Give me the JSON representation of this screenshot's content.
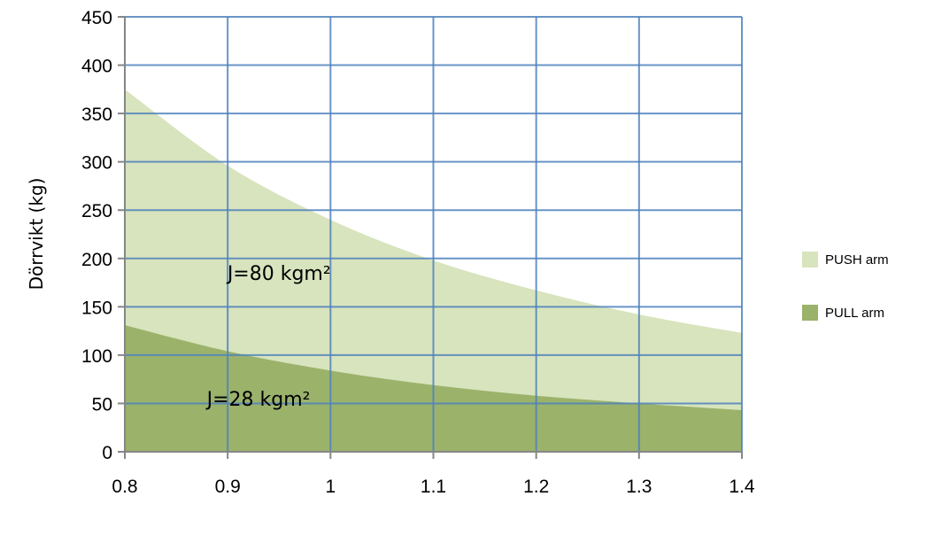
{
  "chart_data": {
    "type": "area",
    "ylabel": "Dörrvikt (kg)",
    "xlabel": "",
    "xlim": [
      0.8,
      1.4
    ],
    "ylim": [
      0,
      450
    ],
    "x_ticks": [
      "0.8",
      "0.9",
      "1",
      "1.1",
      "1.2",
      "1.3",
      "1.4"
    ],
    "y_ticks": [
      "0",
      "50",
      "100",
      "150",
      "200",
      "250",
      "300",
      "350",
      "400",
      "450"
    ],
    "grid": true,
    "legend_position": "right",
    "x": [
      0.8,
      0.9,
      1.0,
      1.1,
      1.2,
      1.3,
      1.4
    ],
    "series": [
      {
        "name": "PUSH arm",
        "color": "#d7e4bd",
        "values": [
          375,
          296,
          240,
          198,
          167,
          142,
          123
        ]
      },
      {
        "name": "PULL arm",
        "color": "#9bb26b",
        "values": [
          131,
          104,
          84,
          69,
          58,
          50,
          43
        ]
      }
    ],
    "annotations": [
      {
        "text": "J=80 kgm²",
        "x": 0.95,
        "y": 185
      },
      {
        "text": "J=28 kgm²",
        "x": 0.93,
        "y": 55
      }
    ]
  },
  "colors": {
    "grid": "#4f81bd",
    "axis": "#868686"
  }
}
